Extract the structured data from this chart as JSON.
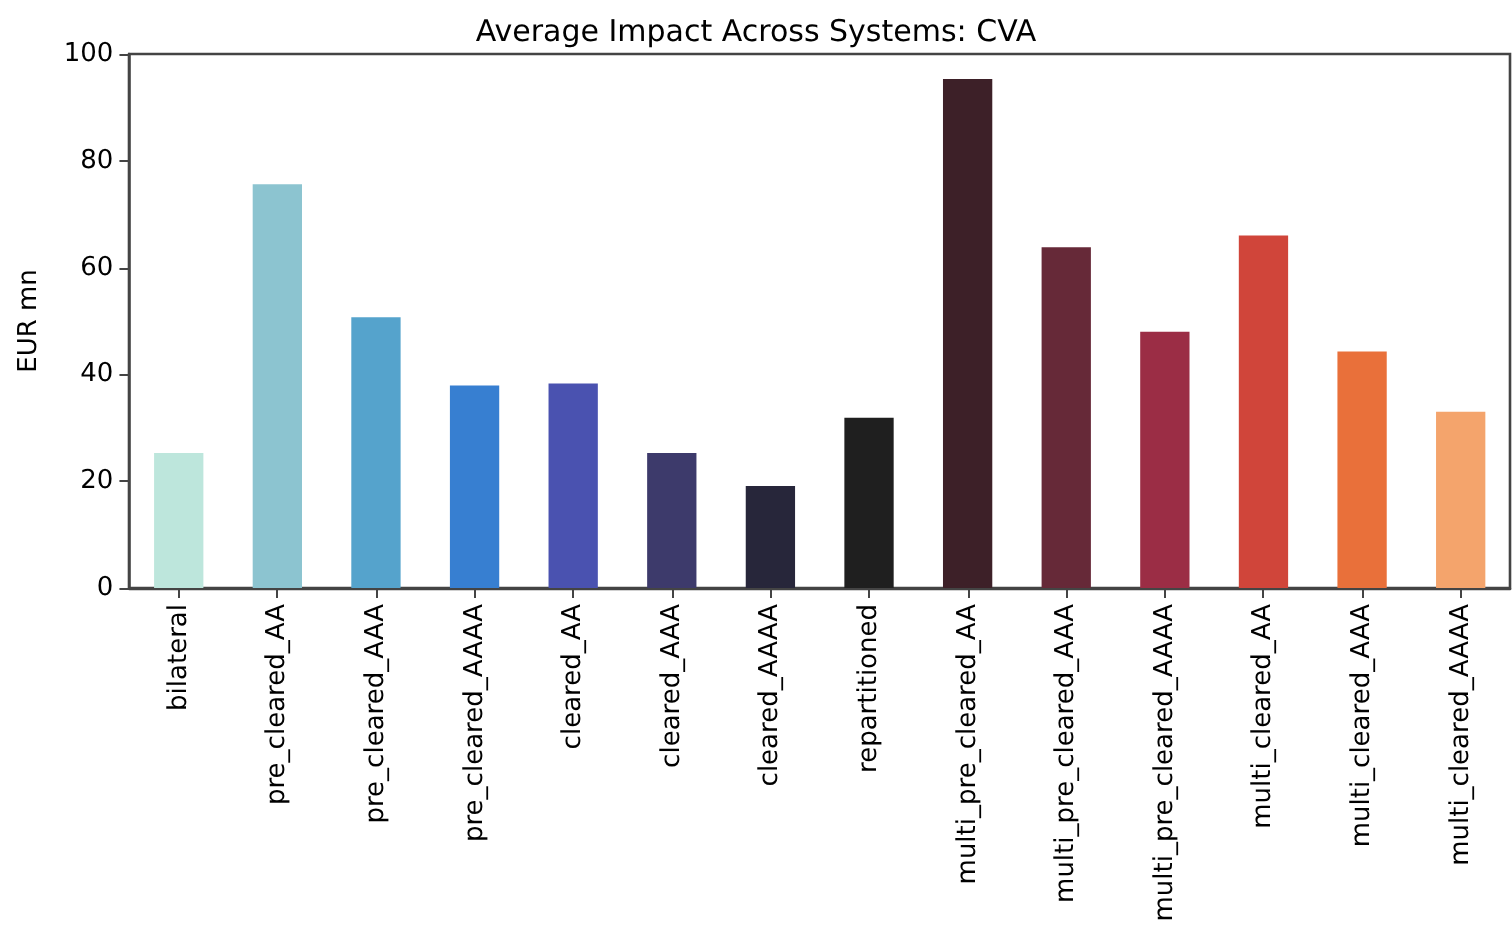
{
  "chart_data": {
    "type": "bar",
    "title": "Average Impact Across Systems: CVA",
    "ylabel": "EUR mn",
    "categories": [
      "bilateral",
      "pre_cleared_AA",
      "pre_cleared_AAA",
      "pre_cleared_AAAA",
      "cleared_AA",
      "cleared_AAA",
      "cleared_AAAA",
      "repartitioned",
      "multi_pre_cleared_AA",
      "multi_pre_cleared_AAA",
      "multi_pre_cleared_AAAA",
      "multi_cleared_AA",
      "multi_cleared_AAA",
      "multi_cleared_AAAA"
    ],
    "values": [
      25.3,
      75.6,
      50.7,
      37.9,
      38.3,
      25.3,
      19.1,
      31.9,
      95.3,
      63.8,
      48.0,
      66.0,
      44.3,
      33.0
    ],
    "colors": [
      "#bde6dc",
      "#8cc4d0",
      "#55a3cc",
      "#377fd1",
      "#4a52b0",
      "#3d3a6b",
      "#27263a",
      "#1f1f1f",
      "#3d2028",
      "#662938",
      "#9b2d45",
      "#d0453a",
      "#e9703a",
      "#f4a46c"
    ],
    "ylim": [
      0,
      100
    ],
    "yticks": [
      0,
      20,
      40,
      60,
      80,
      100
    ],
    "grid": false
  }
}
